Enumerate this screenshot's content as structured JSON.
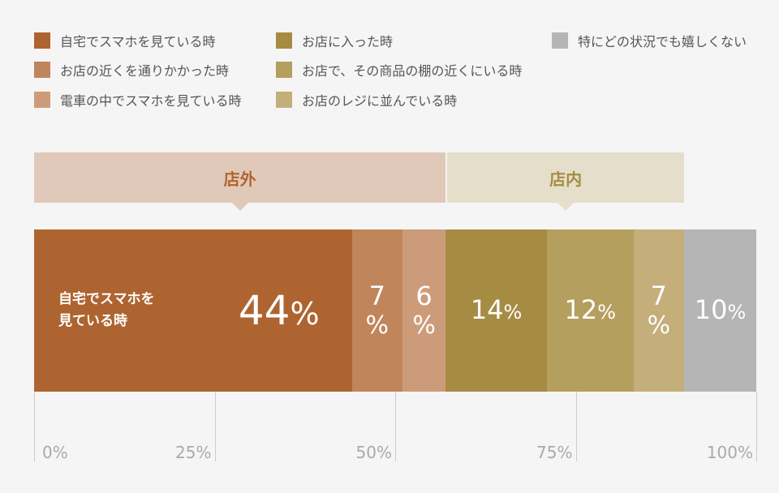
{
  "chart_data": {
    "type": "bar",
    "orientation": "horizontal-stacked",
    "legend": [
      {
        "label": "自宅でスマホを見ている時",
        "color": "#AE6430"
      },
      {
        "label": "お店の近くを通りかかった時",
        "color": "#C0855A"
      },
      {
        "label": "電車の中でスマホを見ている時",
        "color": "#CC9C7A"
      },
      {
        "label": "お店に入った時",
        "color": "#A68C42"
      },
      {
        "label": "お店で、その商品の棚の近くにいる時",
        "color": "#B59F5E"
      },
      {
        "label": "お店のレジに並んでいる時",
        "color": "#C4AE7A"
      },
      {
        "label": "特にどの状況でも嬉しくない",
        "color": "#B5B5B5"
      }
    ],
    "series": [
      {
        "name": "自宅でスマホを見ている時",
        "value": 44,
        "inner_label": [
          "自宅でスマホを",
          "見ている時"
        ]
      },
      {
        "name": "お店の近くを通りかかった時",
        "value": 7
      },
      {
        "name": "電車の中でスマホを見ている時",
        "value": 6
      },
      {
        "name": "お店に入った時",
        "value": 14
      },
      {
        "name": "お店で、その商品の棚の近くにいる時",
        "value": 12
      },
      {
        "name": "お店のレジに並んでいる時",
        "value": 7
      },
      {
        "name": "特にどの状況でも嬉しくない",
        "value": 10
      }
    ],
    "groups": [
      {
        "label": "店外",
        "from": 0,
        "to": 57,
        "bg": "#E0C9B9",
        "color": "#B0652F"
      },
      {
        "label": "店内",
        "from": 57,
        "to": 90,
        "bg": "#E5DECA",
        "color": "#A68C44"
      }
    ],
    "unit": "%",
    "xticks": [
      "0%",
      "25%",
      "50%",
      "75%",
      "100%"
    ],
    "xlim": [
      0,
      100
    ]
  }
}
